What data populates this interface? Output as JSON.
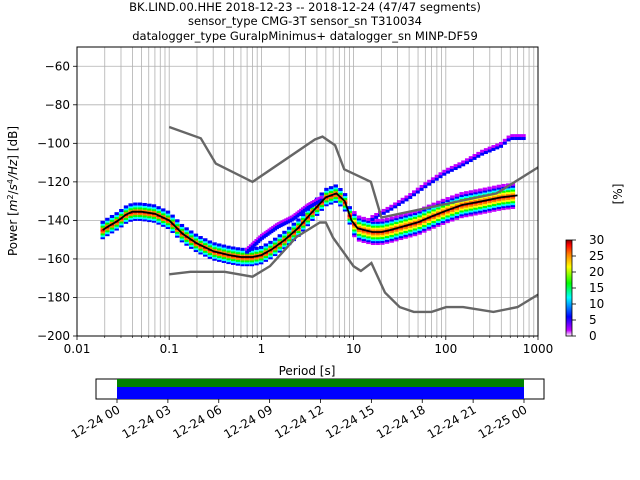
{
  "chart_data": {
    "type": "heatmap",
    "title_lines": [
      "BK.LIND.00.HHE   2018-12-23 -- 2018-12-24  (47/47 segments)",
      "sensor_type CMG-3T sensor_sn T310034",
      "datalogger_type GuralpMinimus+ datalogger_sn MINP-DF59"
    ],
    "xlabel": "Period [s]",
    "ylabel_parts": [
      "Power [",
      "m",
      "2",
      "/",
      "s",
      "4",
      "/Hz",
      "] [dB]"
    ],
    "x_scale": "log",
    "xlim": [
      0.01,
      1000
    ],
    "ylim": [
      -200,
      -50
    ],
    "x_ticks": [
      {
        "v": 0.01,
        "label": "0.01"
      },
      {
        "v": 0.1,
        "label": "0.1"
      },
      {
        "v": 1,
        "label": "1"
      },
      {
        "v": 10,
        "label": "10"
      },
      {
        "v": 100,
        "label": "100"
      },
      {
        "v": 1000,
        "label": "1000"
      }
    ],
    "y_ticks": [
      {
        "v": -60,
        "label": "−60"
      },
      {
        "v": -80,
        "label": "−80"
      },
      {
        "v": -100,
        "label": "−100"
      },
      {
        "v": -120,
        "label": "−120"
      },
      {
        "v": -140,
        "label": "−140"
      },
      {
        "v": -160,
        "label": "−160"
      },
      {
        "v": -180,
        "label": "−180"
      },
      {
        "v": -200,
        "label": "−200"
      }
    ],
    "grid": true,
    "colorbar": {
      "label": "[%]",
      "range": [
        0,
        30
      ],
      "ticks": [
        {
          "v": 0,
          "label": "0"
        },
        {
          "v": 5,
          "label": "5"
        },
        {
          "v": 10,
          "label": "10"
        },
        {
          "v": 15,
          "label": "15"
        },
        {
          "v": 20,
          "label": "20"
        },
        {
          "v": 25,
          "label": "25"
        },
        {
          "v": 30,
          "label": "30"
        }
      ],
      "colors": [
        "#ffffff",
        "#c000ff",
        "#0000ff",
        "#00ffff",
        "#00ff00",
        "#ffff00",
        "#ff8000",
        "#ff0000",
        "#800000"
      ]
    },
    "nhnm": {
      "name": "NHNM",
      "x": [
        0.1,
        0.22,
        0.32,
        0.8,
        3.8,
        4.6,
        6.3,
        7.9,
        15.4,
        20,
        354.8,
        1000
      ],
      "y": [
        -91.5,
        -97.4,
        -110.5,
        -120,
        -98,
        -96.5,
        -101,
        -113.5,
        -120,
        -138.5,
        -126,
        -112.5
      ]
    },
    "nlnm": {
      "name": "NLNM",
      "x": [
        0.1,
        0.17,
        0.4,
        0.8,
        1.24,
        2.4,
        4.3,
        5,
        6,
        10,
        12,
        15.6,
        21.9,
        31.6,
        45,
        70,
        101,
        154,
        328,
        600,
        1000
      ],
      "y": [
        -168,
        -166.7,
        -166.7,
        -169.2,
        -163.7,
        -148.6,
        -141.1,
        -141.1,
        -149,
        -163.8,
        -166.2,
        -162.1,
        -177.5,
        -185,
        -187.5,
        -187.5,
        -185,
        -185,
        -187.5,
        -185,
        -178.5
      ]
    },
    "mode_curve": {
      "name": "mode",
      "x": [
        0.019,
        0.022,
        0.026,
        0.03,
        0.034,
        0.04,
        0.05,
        0.07,
        0.1,
        0.14,
        0.2,
        0.3,
        0.45,
        0.6,
        0.8,
        1,
        1.3,
        1.8,
        2.5,
        3.5,
        5,
        6.5,
        8,
        9.5,
        11,
        13,
        16,
        20,
        25,
        35,
        50,
        70,
        100,
        150,
        250,
        400,
        600
      ],
      "y": [
        -145,
        -143,
        -141,
        -139,
        -137,
        -135.5,
        -135.5,
        -136.5,
        -140,
        -147,
        -152,
        -156,
        -158,
        -159,
        -159,
        -158,
        -155,
        -150,
        -144,
        -136,
        -128,
        -126,
        -130,
        -140,
        -144,
        -145,
        -146,
        -146,
        -145,
        -143,
        -141,
        -138,
        -135,
        -132,
        -130,
        -128,
        -127
      ]
    },
    "histogram": {
      "description_free": true,
      "main_ridge_spread_db": 3,
      "secondary_branch": {
        "x": [
          0.7,
          1,
          1.5,
          2.2,
          3.2,
          4.5
        ],
        "y": [
          -155,
          -148,
          -142,
          -138,
          -132,
          -128
        ]
      },
      "upper_branch": {
        "x": [
          16,
          25,
          40,
          60,
          100,
          150,
          250,
          400,
          500,
          700
        ],
        "y": [
          -138,
          -133,
          -127,
          -121,
          -114,
          -110,
          -104,
          -100,
          -96,
          -96
        ]
      }
    },
    "timeline": {
      "ticks": [
        "12-24 00",
        "12-24 03",
        "12-24 06",
        "12-24 09",
        "12-24 12",
        "12-24 15",
        "12-24 18",
        "12-24 21",
        "12-25 00"
      ],
      "coverage_colors": [
        "#008000",
        "#0000ff"
      ]
    }
  }
}
